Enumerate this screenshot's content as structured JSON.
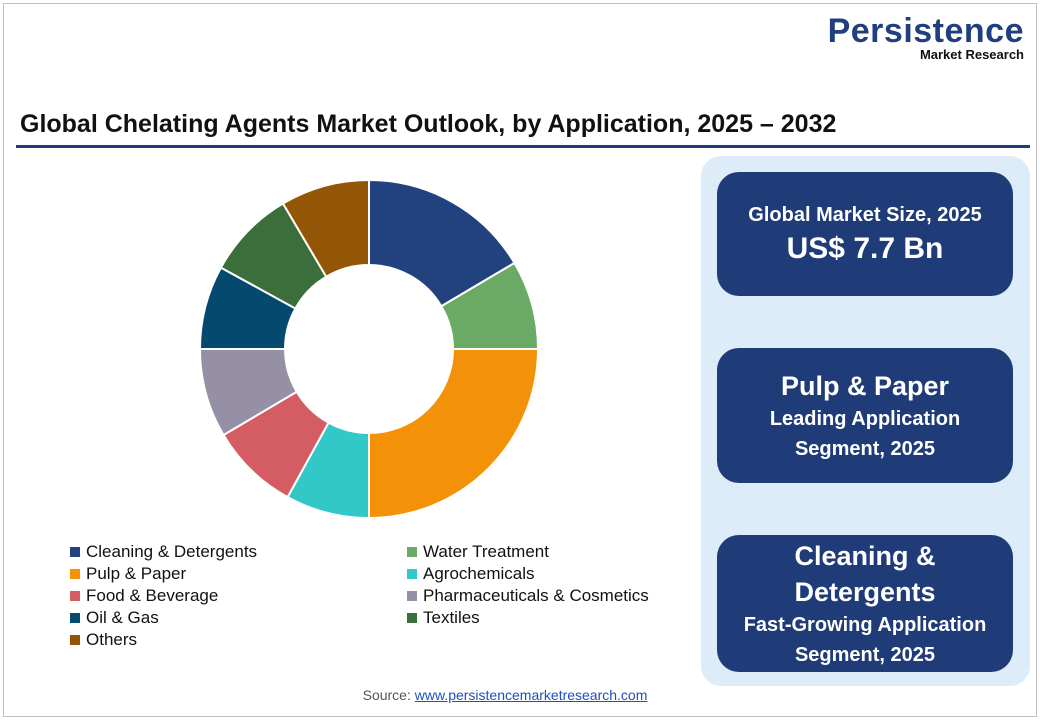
{
  "logo": {
    "line1": "Persistence",
    "line2": "Market Research"
  },
  "title": "Global Chelating Agents Market Outlook, by Application, 2025 – 2032",
  "chart_data": {
    "type": "pie",
    "donut": true,
    "categories": [
      "Cleaning & Detergents",
      "Water Treatment",
      "Pulp & Paper",
      "Agrochemicals",
      "Food & Beverage",
      "Pharmaceuticals & Cosmetics",
      "Oil & Gas",
      "Textiles",
      "Others"
    ],
    "values": [
      16.5,
      8.5,
      25,
      8,
      8.5,
      8.5,
      8,
      8.5,
      8.5
    ],
    "colors": [
      "#22427f",
      "#6aaa64",
      "#f39208",
      "#33c8c8",
      "#d45d63",
      "#9590a6",
      "#034a6e",
      "#3c6e3c",
      "#935606"
    ],
    "legend_position": "bottom"
  },
  "cards": [
    {
      "line1": "Global Market Size, 2025",
      "line2": "US$ 7.7 Bn"
    },
    {
      "line1": "Pulp & Paper",
      "line2": "Leading Application",
      "line3": "Segment, 2025"
    },
    {
      "line1": "Cleaning &",
      "line2": "Detergents",
      "line3": "Fast-Growing Application",
      "line4": "Segment, 2025"
    }
  ],
  "source": {
    "label": "Source:",
    "link": "www.persistencemarketresearch.com"
  }
}
